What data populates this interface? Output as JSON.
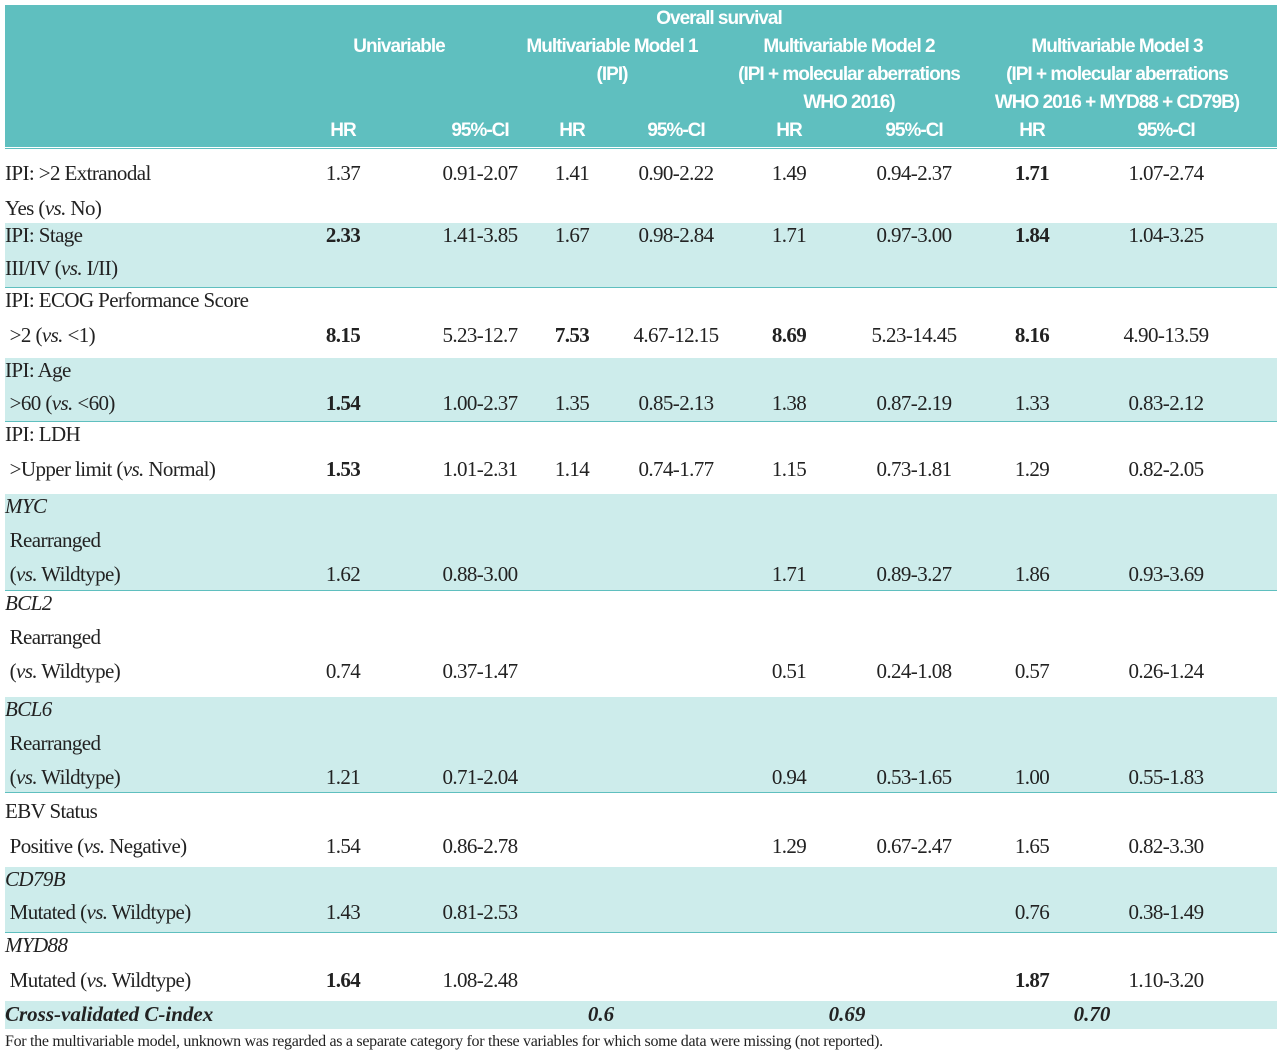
{
  "header": {
    "group_title": "Overall survival",
    "models": [
      {
        "lines": [
          "Univariable"
        ]
      },
      {
        "lines": [
          "Multivariable Model 1",
          "(IPI)"
        ]
      },
      {
        "lines": [
          "Multivariable Model 2",
          "(IPI + molecular aberrations",
          "WHO 2016)"
        ]
      },
      {
        "lines": [
          "Multivariable Model 3",
          "(IPI + molecular aberrations",
          "WHO 2016 + MYD88 + CD79B)"
        ]
      }
    ],
    "subcols": [
      "HR",
      "95%-CI",
      "HR",
      "95%-CI",
      "HR",
      "95%-CI",
      "HR",
      "95%-CI"
    ]
  },
  "rows": [
    {
      "lines": [
        {
          "label": [
            {
              "t": "IPI: >2 Extranodal"
            }
          ],
          "values": [
            "1.37",
            "0.91-2.07",
            "1.41",
            "0.90-2.22",
            "1.49",
            "0.94-2.37",
            "1.71",
            "1.07-2.74"
          ],
          "bold": [
            6
          ]
        },
        {
          "label": [
            {
              "t": "Yes ("
            },
            {
              "t": "vs.",
              "i": true
            },
            {
              "t": " No)"
            }
          ]
        }
      ]
    },
    {
      "lines": [
        {
          "label": [
            {
              "t": "IPI: Stage"
            }
          ],
          "values": [
            "2.33",
            "1.41-3.85",
            "1.67",
            "0.98-2.84",
            "1.71",
            "0.97-3.00",
            "1.84",
            "1.04-3.25"
          ],
          "bold": [
            0,
            6
          ]
        },
        {
          "label": [
            {
              "t": "III/IV ("
            },
            {
              "t": "vs.",
              "i": true
            },
            {
              "t": " I/II)"
            }
          ]
        }
      ]
    },
    {
      "lines": [
        {
          "label": [
            {
              "t": "IPI: ECOG Performance Score"
            }
          ]
        },
        {
          "label": [
            {
              "t": " >2 ("
            },
            {
              "t": "vs.",
              "i": true
            },
            {
              "t": " <1)"
            }
          ],
          "values": [
            "8.15",
            "5.23-12.7",
            "7.53",
            "4.67-12.15",
            "8.69",
            "5.23-14.45",
            "8.16",
            "4.90-13.59"
          ],
          "bold": [
            0,
            2,
            4,
            6
          ]
        }
      ]
    },
    {
      "lines": [
        {
          "label": [
            {
              "t": "IPI: Age"
            }
          ]
        },
        {
          "label": [
            {
              "t": " >60 ("
            },
            {
              "t": "vs.",
              "i": true
            },
            {
              "t": " <60)"
            }
          ],
          "values": [
            "1.54",
            "1.00-2.37",
            "1.35",
            "0.85-2.13",
            "1.38",
            "0.87-2.19",
            "1.33",
            "0.83-2.12"
          ],
          "bold": [
            0
          ]
        }
      ]
    },
    {
      "lines": [
        {
          "label": [
            {
              "t": "IPI: LDH"
            }
          ]
        },
        {
          "label": [
            {
              "t": " >Upper limit ("
            },
            {
              "t": "vs.",
              "i": true
            },
            {
              "t": " Normal)"
            }
          ],
          "values": [
            "1.53",
            "1.01-2.31",
            "1.14",
            "0.74-1.77",
            "1.15",
            "0.73-1.81",
            "1.29",
            "0.82-2.05"
          ],
          "bold": [
            0
          ]
        }
      ]
    },
    {
      "lines": [
        {
          "label": [
            {
              "t": "MYC",
              "i": true
            }
          ]
        },
        {
          "label": [
            {
              "t": " Rearranged"
            }
          ]
        },
        {
          "label": [
            {
              "t": " ("
            },
            {
              "t": "vs.",
              "i": true
            },
            {
              "t": " Wildtype)"
            }
          ],
          "values": [
            "1.62",
            "0.88-3.00",
            "",
            "",
            "1.71",
            "0.89-3.27",
            "1.86",
            "0.93-3.69"
          ]
        }
      ]
    },
    {
      "lines": [
        {
          "label": [
            {
              "t": "BCL2",
              "i": true
            }
          ]
        },
        {
          "label": [
            {
              "t": " Rearranged"
            }
          ]
        },
        {
          "label": [
            {
              "t": " ("
            },
            {
              "t": "vs.",
              "i": true
            },
            {
              "t": " Wildtype)"
            }
          ],
          "values": [
            "0.74",
            "0.37-1.47",
            "",
            "",
            "0.51",
            "0.24-1.08",
            "0.57",
            "0.26-1.24"
          ]
        }
      ]
    },
    {
      "lines": [
        {
          "label": [
            {
              "t": "BCL6",
              "i": true
            }
          ]
        },
        {
          "label": [
            {
              "t": " Rearranged"
            }
          ]
        },
        {
          "label": [
            {
              "t": " ("
            },
            {
              "t": "vs.",
              "i": true
            },
            {
              "t": " Wildtype)"
            }
          ],
          "values": [
            "1.21",
            "0.71-2.04",
            "",
            "",
            "0.94",
            "0.53-1.65",
            "1.00",
            "0.55-1.83"
          ]
        }
      ]
    },
    {
      "lines": [
        {
          "label": [
            {
              "t": "EBV Status"
            }
          ]
        },
        {
          "label": [
            {
              "t": " Positive ("
            },
            {
              "t": "vs.",
              "i": true
            },
            {
              "t": " Negative)"
            }
          ],
          "values": [
            "1.54",
            "0.86-2.78",
            "",
            "",
            "1.29",
            "0.67-2.47",
            "1.65",
            "0.82-3.30"
          ]
        }
      ]
    },
    {
      "lines": [
        {
          "label": [
            {
              "t": "CD79B",
              "i": true
            }
          ]
        },
        {
          "label": [
            {
              "t": " Mutated ("
            },
            {
              "t": "vs.",
              "i": true
            },
            {
              "t": " Wildtype)"
            }
          ],
          "values": [
            "1.43",
            "0.81-2.53",
            "",
            "",
            "",
            "",
            "0.76",
            "0.38-1.49"
          ]
        }
      ]
    },
    {
      "lines": [
        {
          "label": [
            {
              "t": "MYD88",
              "i": true
            }
          ]
        },
        {
          "label": [
            {
              "t": " Mutated ("
            },
            {
              "t": "vs.",
              "i": true
            },
            {
              "t": " Wildtype)"
            }
          ],
          "values": [
            "1.64",
            "1.08-2.48",
            "",
            "",
            "",
            "",
            "1.87",
            "1.10-3.20"
          ],
          "bold": [
            0,
            6
          ]
        }
      ]
    }
  ],
  "cindex": {
    "label": "Cross-validated C-index",
    "values": [
      "0.6",
      "0.69",
      "0.70"
    ]
  },
  "footnote": "For the multivariable model, unknown was regarded as a separate category for these variables for which some data were missing (not reported).",
  "colors": {
    "header": "#5fbfbf",
    "band": "#cdeceb"
  }
}
